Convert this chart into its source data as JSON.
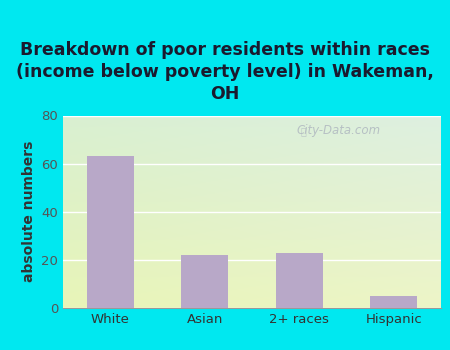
{
  "title": "Breakdown of poor residents within races\n(income below poverty level) in Wakeman,\nOH",
  "categories": [
    "White",
    "Asian",
    "2+ races",
    "Hispanic"
  ],
  "values": [
    63,
    22,
    23,
    5
  ],
  "bar_color": "#b8a8c8",
  "ylabel": "absolute numbers",
  "ylim": [
    0,
    80
  ],
  "yticks": [
    0,
    20,
    40,
    60,
    80
  ],
  "bg_color_topleft": "#d4edd4",
  "bg_color_bottomright": "#eef5e0",
  "title_bg_color": "#00e8f0",
  "title_fontsize": 12.5,
  "axis_fontsize": 10,
  "tick_fontsize": 9.5,
  "watermark": "City-Data.com",
  "title_color": "#1a1a2e"
}
